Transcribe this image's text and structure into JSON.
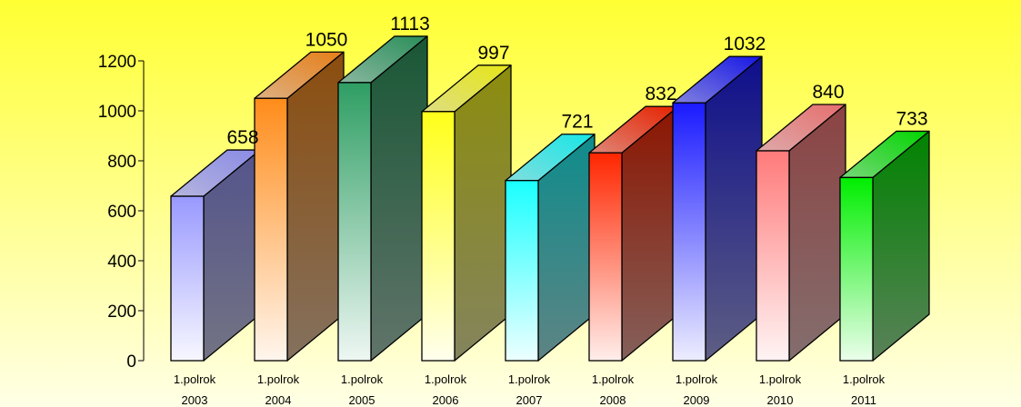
{
  "chart_data": {
    "type": "bar",
    "style": "3d-column",
    "categories": [
      [
        "1.polrok",
        "2003"
      ],
      [
        "1.polrok",
        "2004"
      ],
      [
        "1.polrok",
        "2005"
      ],
      [
        "1.polrok",
        "2006"
      ],
      [
        "1.polrok",
        "2007"
      ],
      [
        "1.polrok",
        "2008"
      ],
      [
        "1.polrok",
        "2009"
      ],
      [
        "1.polrok",
        "2010"
      ],
      [
        "1.polrok",
        "2011"
      ]
    ],
    "values": [
      658,
      1050,
      1113,
      997,
      721,
      832,
      1032,
      840,
      733
    ],
    "ylim": [
      0,
      1200
    ],
    "yticks": [
      0,
      200,
      400,
      600,
      800,
      1000,
      1200
    ],
    "grid": false,
    "legend": "none",
    "data_labels": true,
    "background": {
      "top": "#ffff33",
      "bottom": "#ffffe6"
    },
    "bar_colors": [
      "#9999ff",
      "#ff8c1a",
      "#2e9e63",
      "#ffff1a",
      "#1affff",
      "#ff2600",
      "#1a1aff",
      "#ff7a7a",
      "#00ee00"
    ]
  }
}
